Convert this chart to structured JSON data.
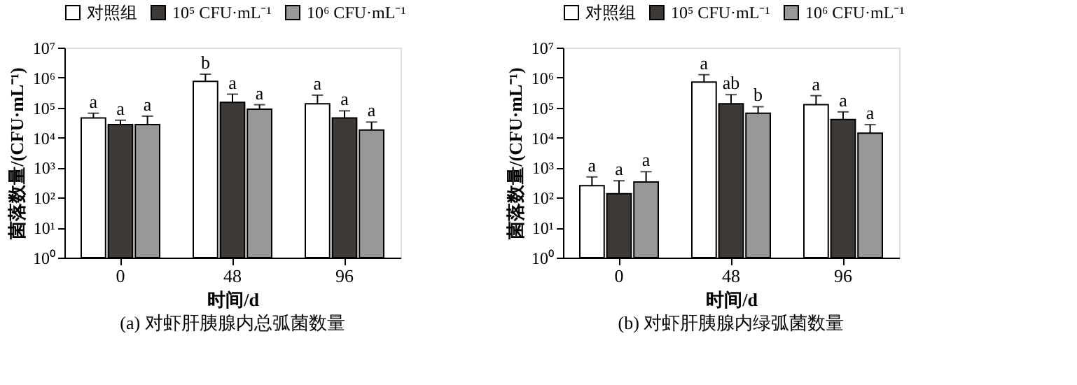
{
  "chart_data": [
    {
      "type": "bar",
      "categories": [
        "0",
        "48",
        "96"
      ],
      "xlabel": "时间/d",
      "ylabel": "菌落数量/(CFU·mL⁻¹)",
      "log": true,
      "legend": "top",
      "grid": false,
      "ylim": [
        1,
        10000000
      ],
      "yticks": [
        {
          "value": 1,
          "label": "10⁰"
        },
        {
          "value": 10,
          "label": "10¹"
        },
        {
          "value": 100,
          "label": "10²"
        },
        {
          "value": 1000,
          "label": "10³"
        },
        {
          "value": 10000,
          "label": "10⁴"
        },
        {
          "value": 100000,
          "label": "10⁵"
        },
        {
          "value": 1000000,
          "label": "10⁶"
        },
        {
          "value": 10000000,
          "label": "10⁷"
        }
      ],
      "series": [
        {
          "name": "对照组",
          "color": "#ffffff",
          "values": [
            45000,
            750000,
            135000
          ],
          "errors": [
            [
              45000,
              65000
            ],
            [
              750000,
              1300000
            ],
            [
              135000,
              260000
            ]
          ],
          "value_labels": [
            "a",
            "b",
            "a"
          ]
        },
        {
          "name": "10⁵ CFU·mL⁻¹",
          "color": "#3d3a38",
          "values": [
            27000,
            150000,
            45000
          ],
          "errors": [
            [
              27000,
              38000
            ],
            [
              150000,
              280000
            ],
            [
              45000,
              78000
            ]
          ],
          "value_labels": [
            "a",
            "a",
            "a"
          ]
        },
        {
          "name": "10⁶ CFU·mL⁻¹",
          "color": "#9a9797",
          "values": [
            27000,
            88000,
            18000
          ],
          "errors": [
            [
              27000,
              52000
            ],
            [
              88000,
              125000
            ],
            [
              18000,
              33000
            ]
          ],
          "value_labels": [
            "a",
            "a",
            "a"
          ]
        }
      ],
      "annotations": [
        "(a) 对虾肝胰腺内总弧菌数量"
      ]
    },
    {
      "type": "bar",
      "categories": [
        "0",
        "48",
        "96"
      ],
      "xlabel": "时间/d",
      "ylabel": "菌落数量/(CFU·mL⁻¹)",
      "log": true,
      "legend": "top",
      "grid": false,
      "ylim": [
        1,
        10000000
      ],
      "yticks": [
        {
          "value": 1,
          "label": "10⁰"
        },
        {
          "value": 10,
          "label": "10¹"
        },
        {
          "value": 100,
          "label": "10²"
        },
        {
          "value": 1000,
          "label": "10³"
        },
        {
          "value": 10000,
          "label": "10⁴"
        },
        {
          "value": 100000,
          "label": "10⁵"
        },
        {
          "value": 1000000,
          "label": "10⁶"
        },
        {
          "value": 10000000,
          "label": "10⁷"
        }
      ],
      "series": [
        {
          "name": "对照组",
          "color": "#ffffff",
          "values": [
            250,
            710000,
            125000
          ],
          "errors": [
            [
              250,
              490
            ],
            [
              710000,
              1250000
            ],
            [
              125000,
              250000
            ]
          ],
          "value_labels": [
            "a",
            "a",
            "a"
          ]
        },
        {
          "name": "10⁵ CFU·mL⁻¹",
          "color": "#3d3a38",
          "values": [
            135,
            135000,
            40000
          ],
          "errors": [
            [
              135,
              365
            ],
            [
              135000,
              270000
            ],
            [
              40000,
              72000
            ]
          ],
          "value_labels": [
            "a",
            "ab",
            "a"
          ]
        },
        {
          "name": "10⁶ CFU·mL⁻¹",
          "color": "#9a9797",
          "values": [
            330,
            65000,
            14000
          ],
          "errors": [
            [
              330,
              730
            ],
            [
              65000,
              107000
            ],
            [
              14000,
              27000
            ]
          ],
          "value_labels": [
            "a",
            "b",
            "a"
          ]
        }
      ],
      "annotations": [
        "(b) 对虾肝胰腺内绿弧菌数量"
      ]
    }
  ]
}
